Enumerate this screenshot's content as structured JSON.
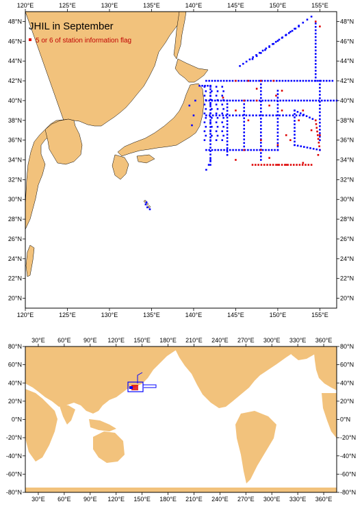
{
  "map_top": {
    "title": "JHIL in September",
    "legend_label": "5 or 6 of station information flag",
    "lon_range": [
      120,
      157
    ],
    "lat_range": [
      19,
      49
    ],
    "lon_ticks": [
      "120°E",
      "125°E",
      "130°E",
      "135°E",
      "140°E",
      "145°E",
      "150°E",
      "155°E"
    ],
    "lat_ticks": [
      "20°N",
      "22°N",
      "24°N",
      "26°N",
      "28°N",
      "30°N",
      "32°N",
      "34°N",
      "36°N",
      "38°N",
      "40°N",
      "42°N",
      "44°N",
      "46°N",
      "48°N"
    ],
    "colors": {
      "land": "#f2c27c",
      "station": "#0000ff",
      "flag": "#dd0000"
    }
  },
  "map_bottom": {
    "lon_range": [
      15,
      375
    ],
    "lat_range": [
      -80,
      80
    ],
    "lon_ticks": [
      "30°E",
      "60°E",
      "90°E",
      "120°E",
      "150°E",
      "180°E",
      "210°E",
      "240°E",
      "270°E",
      "300°E",
      "330°E",
      "360°E"
    ],
    "lat_ticks": [
      "80°N",
      "60°N",
      "40°N",
      "20°N",
      "0°N",
      "-20°N",
      "-40°N",
      "-60°N",
      "-80°N"
    ],
    "colors": {
      "land": "#f2c27c",
      "station": "#0000ff",
      "flag": "#dd0000"
    }
  }
}
